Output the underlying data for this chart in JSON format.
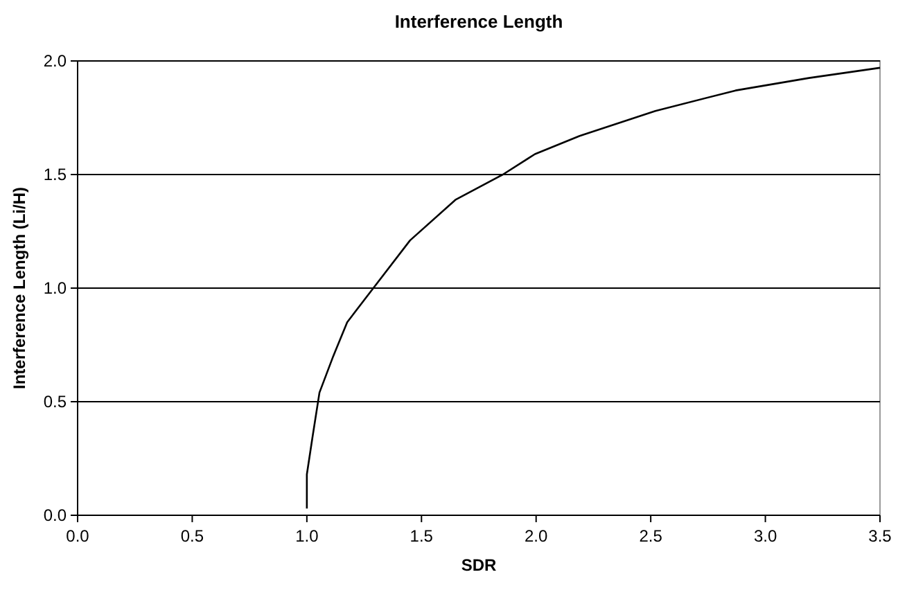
{
  "chart_data": {
    "type": "line",
    "title": "Interference Length",
    "xlabel": "SDR",
    "ylabel": "Interference Length (Li/H)",
    "x": [
      1.0,
      1.0,
      1.024,
      1.055,
      1.085,
      1.115,
      1.176,
      1.29,
      1.45,
      1.65,
      1.855,
      1.995,
      2.19,
      2.52,
      2.87,
      3.19,
      3.5
    ],
    "series": [
      {
        "color": "#000000",
        "values": [
          0.03,
          0.18,
          0.34,
          0.54,
          0.62,
          0.7,
          0.85,
          1.0,
          1.21,
          1.39,
          1.5,
          1.59,
          1.67,
          1.78,
          1.87,
          1.925,
          1.97
        ]
      }
    ],
    "xlim": [
      0,
      3.5
    ],
    "xticks": [
      {
        "value": 0,
        "label": "0.0"
      },
      {
        "value": 0.5,
        "label": "0.5"
      },
      {
        "value": 1,
        "label": "1.0"
      },
      {
        "value": 1.5,
        "label": "1.5"
      },
      {
        "value": 2,
        "label": "2.0"
      },
      {
        "value": 2.5,
        "label": "2.5"
      },
      {
        "value": 3,
        "label": "3.0"
      },
      {
        "value": 3.5,
        "label": "3.5"
      }
    ],
    "ylim": [
      0,
      2
    ],
    "yticks": [
      {
        "value": 0,
        "label": "0.0"
      },
      {
        "value": 0.5,
        "label": "0.5"
      },
      {
        "value": 1,
        "label": "1.0"
      },
      {
        "value": 1.5,
        "label": "1.5"
      },
      {
        "value": 2,
        "label": "2.0"
      }
    ],
    "grid": "y",
    "marker": "none",
    "line_style": "solid"
  }
}
